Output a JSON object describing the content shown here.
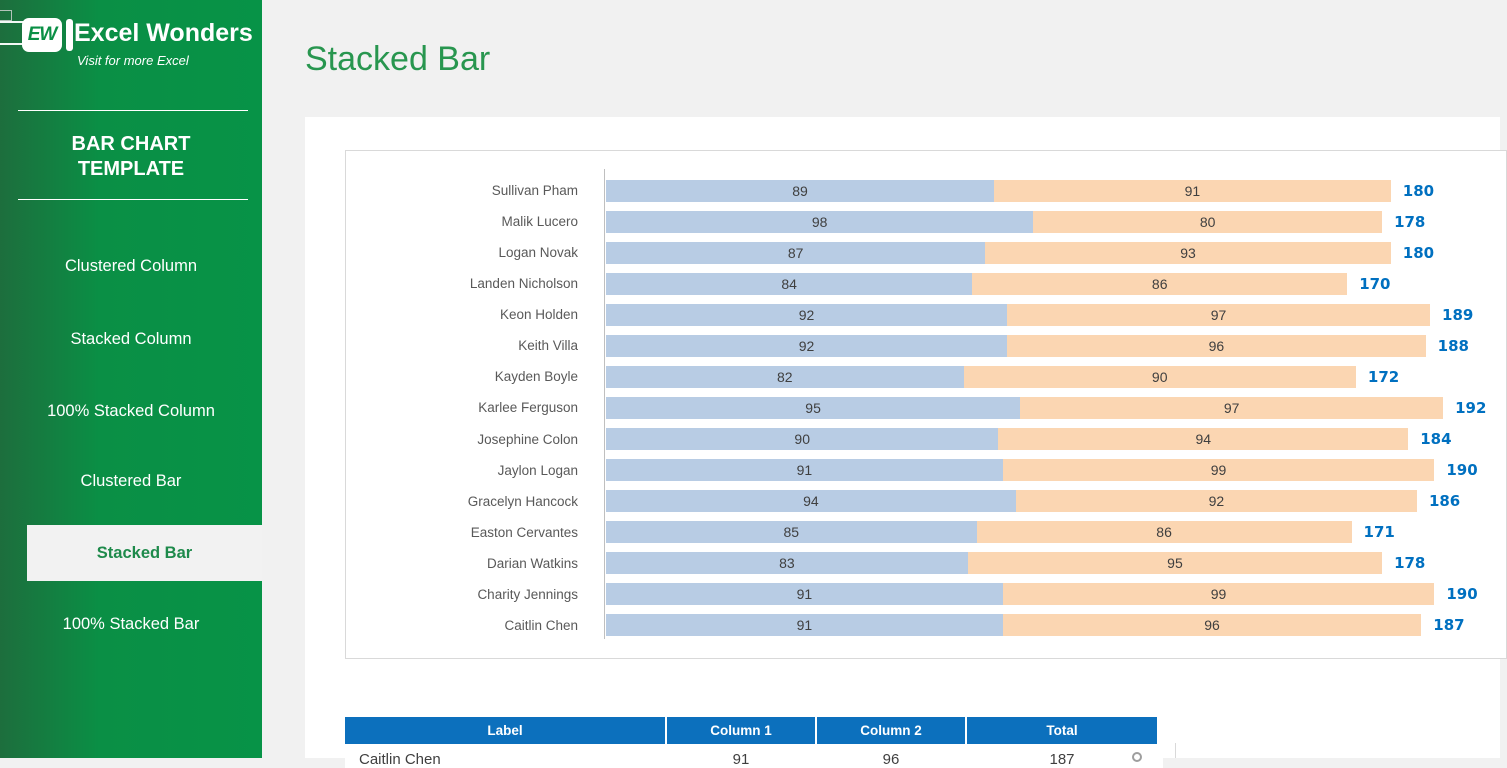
{
  "sidebar": {
    "logo": {
      "mark": "EW",
      "title": "Excel Wonders",
      "tagline": "Visit for more Excel"
    },
    "heading_line1": "BAR CHART",
    "heading_line2": "TEMPLATE",
    "items": [
      {
        "label": "Clustered Column",
        "selected": false
      },
      {
        "label": "Stacked Column",
        "selected": false
      },
      {
        "label": "100% Stacked Column",
        "selected": false
      },
      {
        "label": "Clustered Bar",
        "selected": false
      },
      {
        "label": "Stacked Bar",
        "selected": true
      },
      {
        "label": "100% Stacked Bar",
        "selected": false
      }
    ]
  },
  "main": {
    "title": "Stacked Bar"
  },
  "chart_data": {
    "type": "bar",
    "orientation": "horizontal",
    "stacked": true,
    "title": "",
    "xlabel": "",
    "ylabel": "",
    "xlim": [
      0,
      200
    ],
    "grid": false,
    "legend": "none",
    "categories": [
      "Sullivan Pham",
      "Malik Lucero",
      "Logan Novak",
      "Landen Nicholson",
      "Keon Holden",
      "Keith Villa",
      "Kayden Boyle",
      "Karlee Ferguson",
      "Josephine Colon",
      "Jaylon Logan",
      "Gracelyn Hancock",
      "Easton Cervantes",
      "Darian Watkins",
      "Charity Jennings",
      "Caitlin Chen"
    ],
    "series": [
      {
        "name": "Column 1",
        "color": "#b8cce4",
        "values": [
          89,
          98,
          87,
          84,
          92,
          92,
          82,
          95,
          90,
          91,
          94,
          85,
          83,
          91,
          91
        ]
      },
      {
        "name": "Column 2",
        "color": "#fbd6b2",
        "values": [
          91,
          80,
          93,
          86,
          97,
          96,
          90,
          97,
          94,
          99,
          92,
          86,
          95,
          99,
          96
        ]
      }
    ],
    "totals": [
      180,
      178,
      180,
      170,
      189,
      188,
      172,
      192,
      184,
      190,
      186,
      171,
      178,
      190,
      187
    ],
    "value_label_color": "#3f3f3f",
    "total_label_color": "#0070c0"
  },
  "table": {
    "headers": [
      "Label",
      "Column 1",
      "Column 2",
      "Total"
    ],
    "header_bg": "#0c70bd",
    "rows": [
      {
        "label": "Caitlin Chen",
        "col1": "91",
        "col2": "96",
        "total": "187"
      }
    ]
  },
  "colors": {
    "brand_green": "#079347",
    "brand_green_dark": "#1d6e3d",
    "title_green": "#28964f",
    "selected_item_text": "#1e8a4b",
    "bar_blue": "#b8cce4",
    "bar_orange": "#fbd6b2",
    "total_blue": "#0070c0",
    "table_header_blue": "#0c70bd"
  }
}
